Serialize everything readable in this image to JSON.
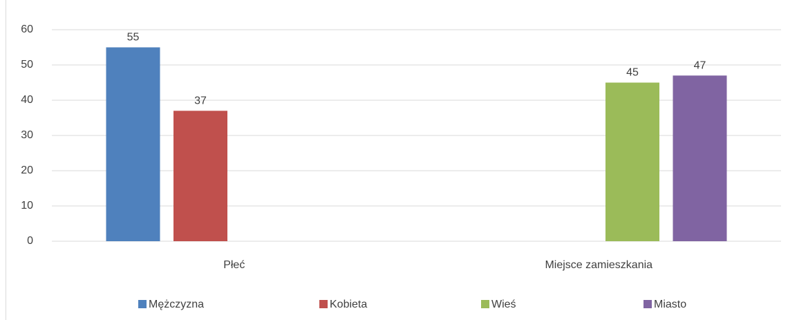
{
  "chart_data": {
    "type": "bar",
    "categories": [
      "Płeć",
      "Miejsce zamieszkania"
    ],
    "series": [
      {
        "name": "Mężczyzna",
        "color": "#4f81bd",
        "values": [
          55,
          null
        ]
      },
      {
        "name": "Kobieta",
        "color": "#c0504d",
        "values": [
          37,
          null
        ]
      },
      {
        "name": "Wieś",
        "color": "#9bbb59",
        "values": [
          null,
          45
        ]
      },
      {
        "name": "Miasto",
        "color": "#8064a2",
        "values": [
          null,
          47
        ]
      }
    ],
    "ylim": [
      0,
      60
    ],
    "yticks": [
      0,
      10,
      20,
      30,
      40,
      50,
      60
    ],
    "grid": true,
    "legend": "bottom"
  }
}
